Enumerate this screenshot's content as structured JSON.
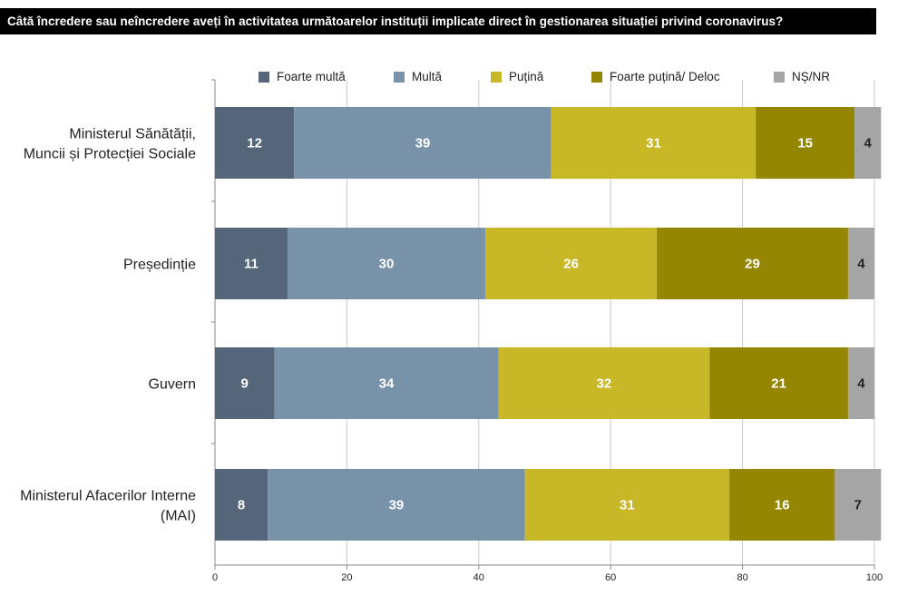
{
  "chart_data": {
    "type": "bar",
    "orientation": "horizontal",
    "stacked": true,
    "title": "Câtă încredere sau neîncredere aveți în activitatea următoarelor instituții implicate direct în gestionarea situației privind coronavirus?",
    "categories": [
      [
        "Ministerul Sănătății,",
        "Muncii și Protecției Sociale"
      ],
      [
        "Președinție"
      ],
      [
        "Guvern"
      ],
      [
        "Ministerul Afacerilor Interne",
        "(MAI)"
      ]
    ],
    "series": [
      {
        "name": "Foarte multă",
        "color": "#55667a",
        "label_color": "#ffffff",
        "values": [
          12,
          11,
          9,
          8
        ]
      },
      {
        "name": "Multă",
        "color": "#7892aa",
        "label_color": "#ffffff",
        "values": [
          39,
          30,
          34,
          39
        ]
      },
      {
        "name": "Puțină",
        "color": "#c8b828",
        "label_color": "#ffffff",
        "values": [
          31,
          26,
          32,
          31
        ]
      },
      {
        "name": "Foarte puțină/ Deloc",
        "color": "#948600",
        "label_color": "#ffffff",
        "values": [
          15,
          29,
          21,
          16
        ]
      },
      {
        "name": "NȘ/NR",
        "color": "#a5a5a5",
        "label_color": "#222222",
        "values": [
          4,
          4,
          4,
          7
        ]
      }
    ],
    "xlim": [
      0,
      100
    ],
    "xticks": [
      "0",
      "20",
      "40",
      "60",
      "80",
      "100"
    ],
    "grid": true,
    "legend_position": "top"
  }
}
